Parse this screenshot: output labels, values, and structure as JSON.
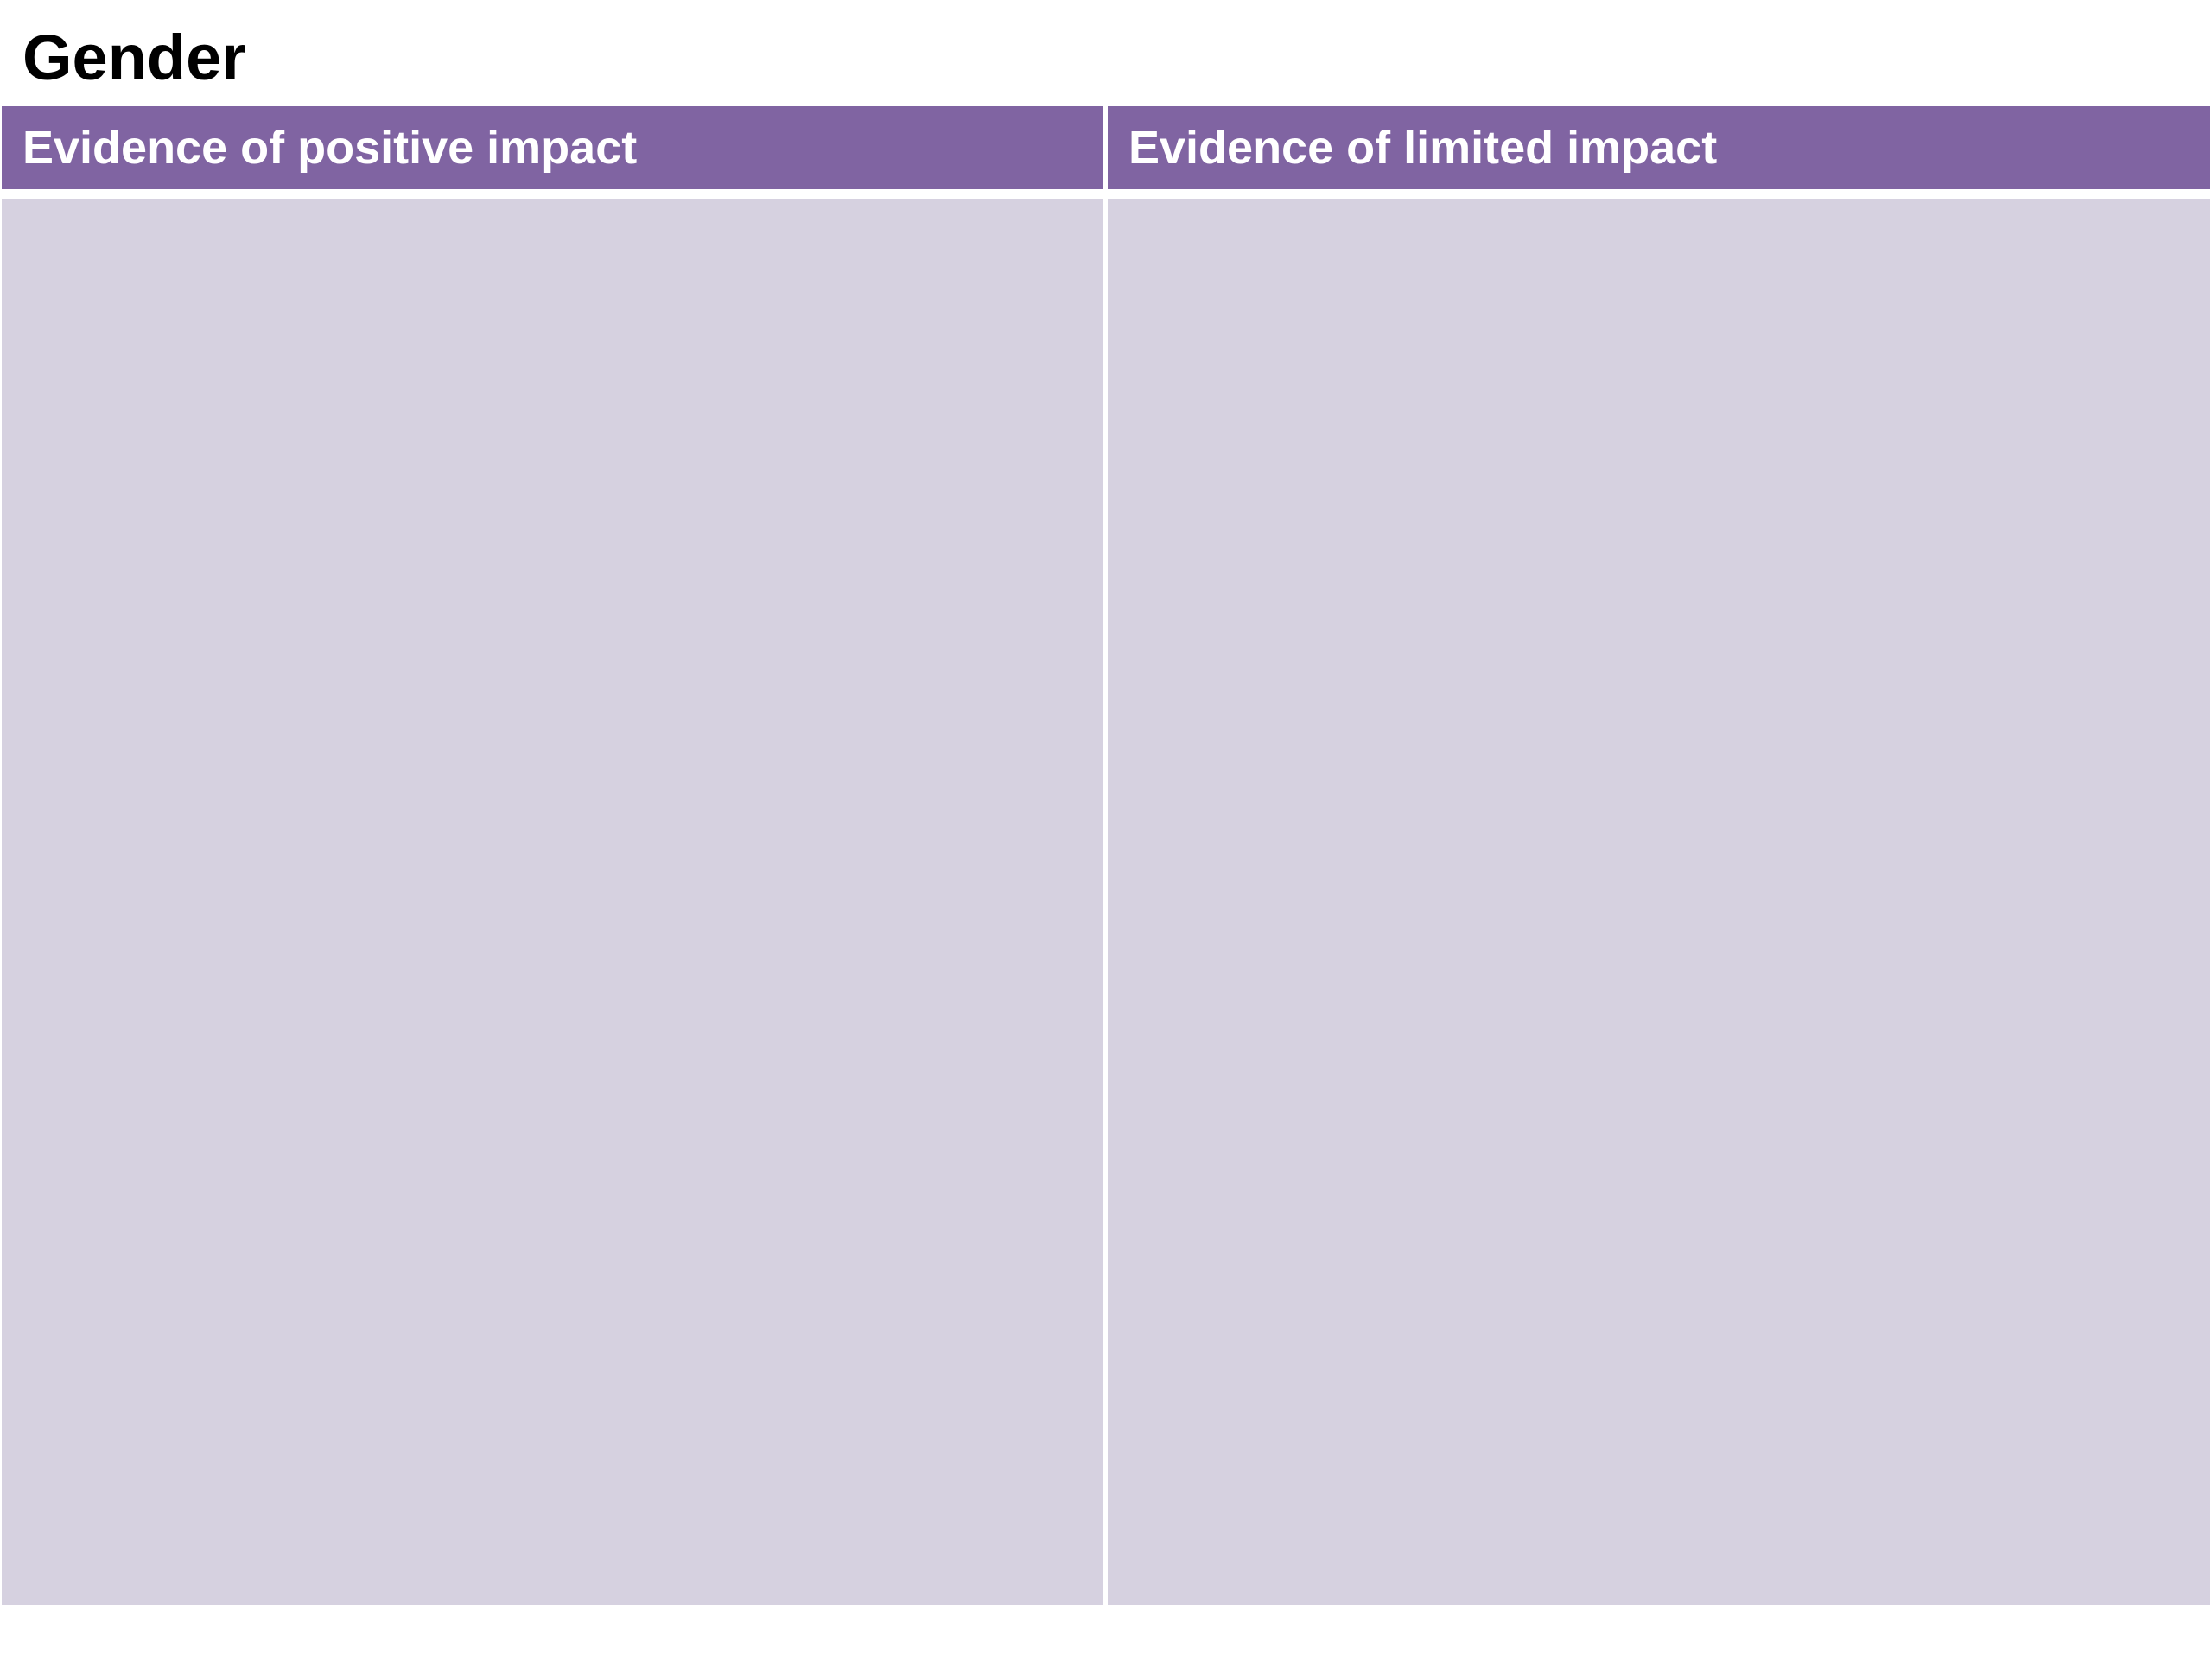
{
  "header": {
    "title": "Gender"
  },
  "table": {
    "columns": [
      "Evidence of positive impact",
      "Evidence of limited impact"
    ]
  }
}
